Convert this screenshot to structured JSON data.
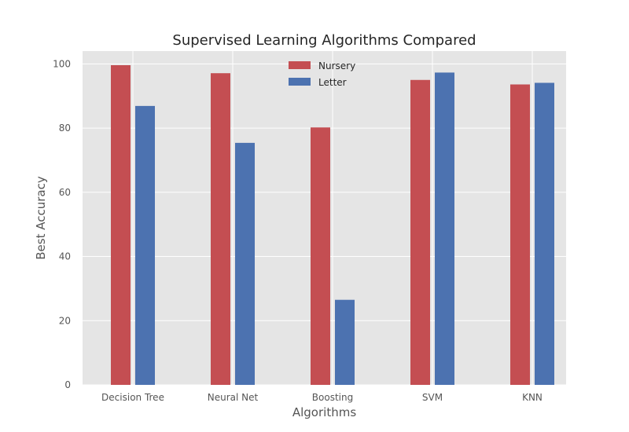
{
  "chart_data": {
    "type": "bar",
    "title": "Supervised Learning Algorithms Compared",
    "xlabel": "Algorithms",
    "ylabel": "Best Accuracy",
    "categories": [
      "Decision Tree",
      "Neural Net",
      "Boosting",
      "SVM",
      "KNN"
    ],
    "series": [
      {
        "name": "Nursery",
        "color": "#c44e52",
        "values": [
          99.6,
          97.1,
          80.2,
          95.0,
          93.6
        ]
      },
      {
        "name": "Letter",
        "color": "#4c72b0",
        "values": [
          86.9,
          75.4,
          26.5,
          97.3,
          94.1
        ]
      }
    ],
    "ylim": [
      0,
      104
    ],
    "yticks": [
      0,
      20,
      40,
      60,
      80,
      100
    ],
    "grid": true,
    "legend": "top-center",
    "background": "#e5e5e5",
    "gridColor": "#ffffff"
  }
}
